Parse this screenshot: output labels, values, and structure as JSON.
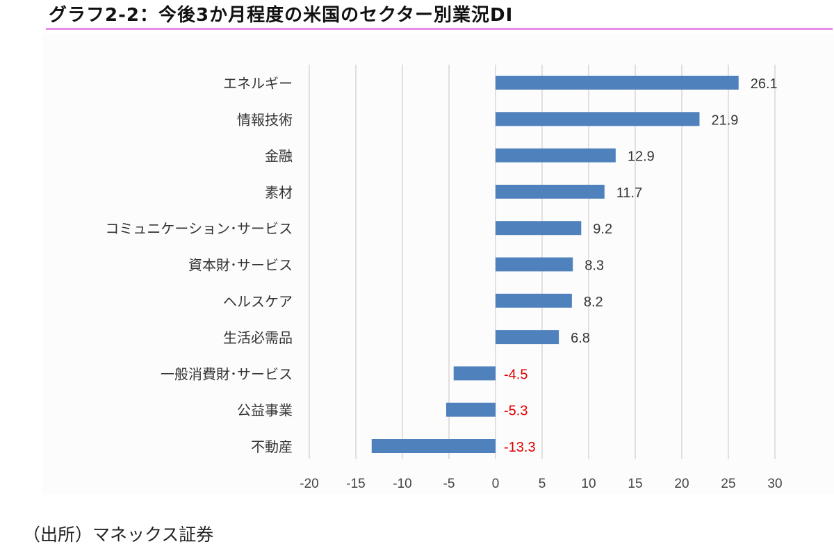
{
  "title": "グラフ2-2：今後3か月程度の米国のセクター別業況DI",
  "source": "（出所）マネックス証券",
  "colors": {
    "bar": "#4f81bd",
    "positive_label": "#333333",
    "negative_label": "#e00000",
    "gridline": "#dcd3d8",
    "title_underline": "#e88ee8"
  },
  "chart_data": {
    "type": "bar",
    "orientation": "horizontal",
    "categories": [
      "エネルギー",
      "情報技術",
      "金融",
      "素材",
      "コミュニケーション･サービス",
      "資本財･サービス",
      "ヘルスケア",
      "生活必需品",
      "一般消費財･サービス",
      "公益事業",
      "不動産"
    ],
    "values": [
      26.1,
      21.9,
      12.9,
      11.7,
      9.2,
      8.3,
      8.2,
      6.8,
      -4.5,
      -5.3,
      -13.3
    ],
    "value_labels": [
      "26.1",
      "21.9",
      "12.9",
      "11.7",
      "9.2",
      "8.3",
      "8.2",
      "6.8",
      "-4.5",
      "-5.3",
      "-13.3"
    ],
    "xlim": [
      -20,
      30
    ],
    "xticks": [
      -20,
      -15,
      -10,
      -5,
      0,
      5,
      10,
      15,
      20,
      25,
      30
    ],
    "grid": true,
    "legend": false
  }
}
